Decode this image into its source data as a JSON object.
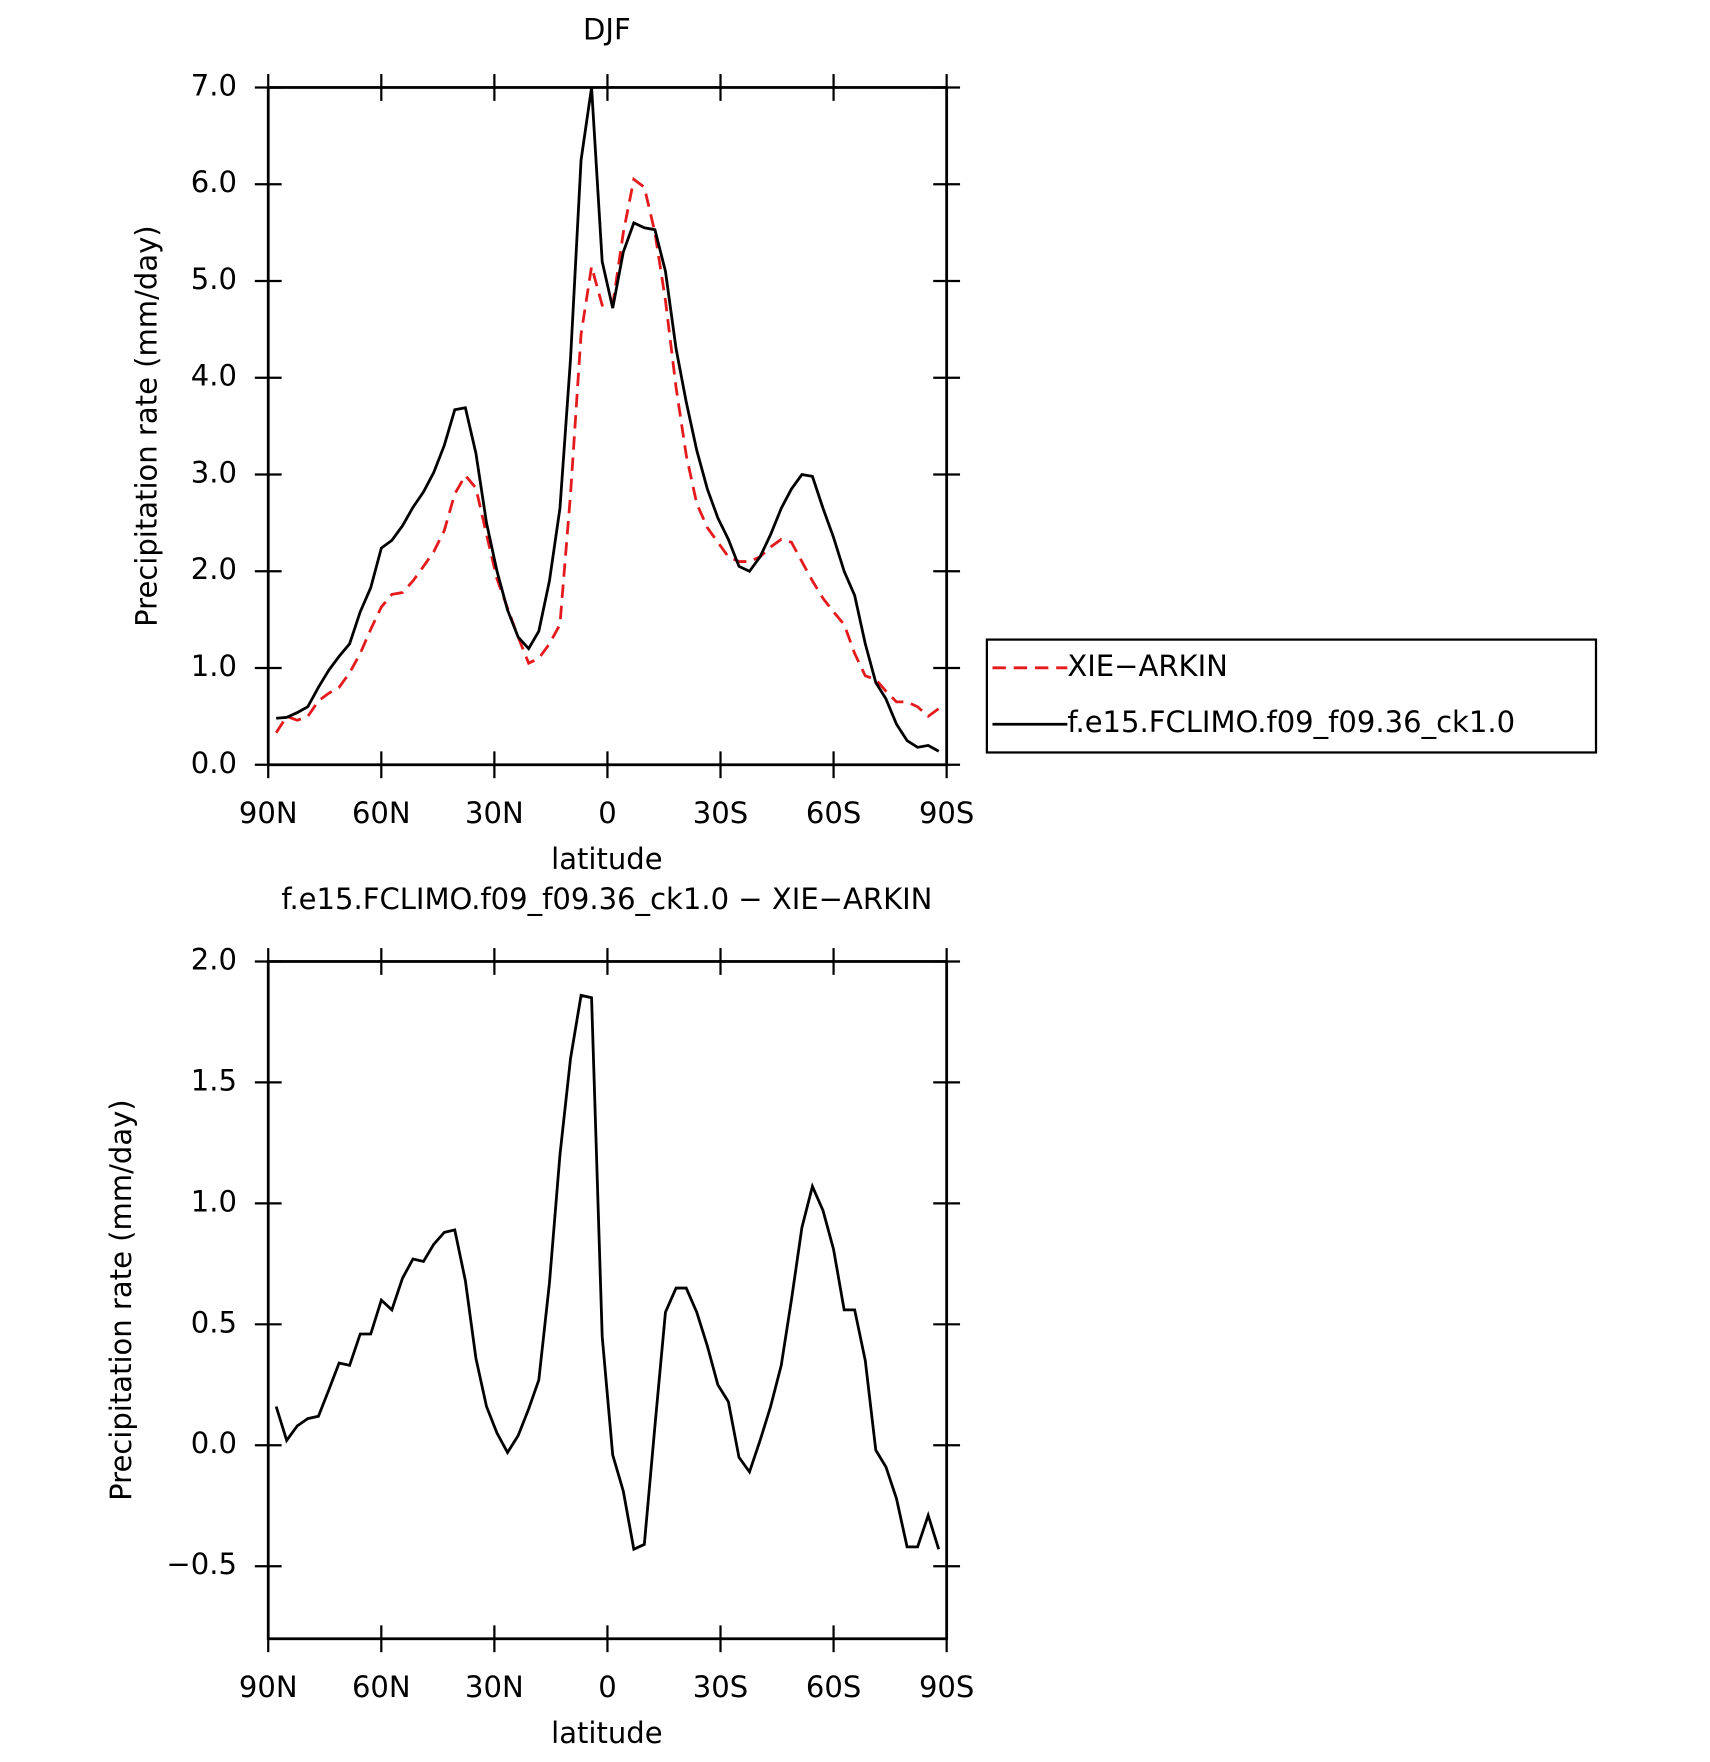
{
  "chart_data": [
    {
      "type": "line",
      "title": "DJF",
      "xlabel": "latitude",
      "ylabel": "Precipitation rate (mm/day)",
      "x": [
        87.9,
        85.1,
        82.3,
        79.5,
        76.7,
        73.9,
        71.2,
        68.4,
        65.6,
        62.8,
        60.0,
        57.2,
        54.4,
        51.6,
        48.8,
        46.1,
        43.3,
        40.5,
        37.7,
        34.9,
        32.1,
        29.3,
        26.5,
        23.7,
        20.9,
        18.2,
        15.4,
        12.6,
        9.8,
        7.0,
        4.2,
        1.4,
        -1.4,
        -4.2,
        -7.0,
        -9.8,
        -12.6,
        -15.4,
        -18.2,
        -20.9,
        -23.7,
        -26.5,
        -29.3,
        -32.1,
        -34.9,
        -37.7,
        -40.5,
        -43.3,
        -46.1,
        -48.8,
        -51.6,
        -54.4,
        -57.2,
        -60.0,
        -62.8,
        -65.6,
        -68.4,
        -71.2,
        -73.9,
        -76.7,
        -79.5,
        -82.3,
        -85.1,
        -87.9
      ],
      "series": [
        {
          "name": "XIE−ARKIN",
          "color": "#e41a1c",
          "linestyle": "dashed",
          "values": [
            0.33,
            0.5,
            0.46,
            0.5,
            0.66,
            0.74,
            0.8,
            0.95,
            1.15,
            1.4,
            1.63,
            1.76,
            1.78,
            1.9,
            2.05,
            2.2,
            2.42,
            2.8,
            2.99,
            2.86,
            2.38,
            1.92,
            1.62,
            1.32,
            1.05,
            1.1,
            1.25,
            1.45,
            2.8,
            4.45,
            5.15,
            4.75,
            4.75,
            5.5,
            6.05,
            5.97,
            5.5,
            4.8,
            3.9,
            3.2,
            2.7,
            2.45,
            2.3,
            2.15,
            2.1,
            2.1,
            2.15,
            2.25,
            2.33,
            2.3,
            2.1,
            1.9,
            1.72,
            1.58,
            1.45,
            1.15,
            0.92,
            0.88,
            0.76,
            0.65,
            0.65,
            0.6,
            0.5,
            0.58
          ]
        },
        {
          "name": "f.e15.FCLIMO.f09_f09.36_ck1.0",
          "color": "#000000",
          "linestyle": "solid",
          "values": [
            0.48,
            0.49,
            0.54,
            0.6,
            0.8,
            0.98,
            1.12,
            1.25,
            1.58,
            1.83,
            2.24,
            2.32,
            2.47,
            2.66,
            2.82,
            3.02,
            3.3,
            3.67,
            3.69,
            3.22,
            2.5,
            2.0,
            1.6,
            1.32,
            1.2,
            1.38,
            1.9,
            2.65,
            4.2,
            6.25,
            7.0,
            5.2,
            4.72,
            5.3,
            5.6,
            5.55,
            5.53,
            5.1,
            4.3,
            3.75,
            3.25,
            2.85,
            2.55,
            2.33,
            2.05,
            2.0,
            2.15,
            2.38,
            2.65,
            2.85,
            3.0,
            2.98,
            2.65,
            2.35,
            2.0,
            1.75,
            1.25,
            0.85,
            0.68,
            0.42,
            0.25,
            0.18,
            0.2,
            0.14
          ]
        }
      ],
      "xlim": [
        90,
        -90
      ],
      "xticks": [
        {
          "value": 90,
          "label": "90N"
        },
        {
          "value": 60,
          "label": "60N"
        },
        {
          "value": 30,
          "label": "30N"
        },
        0,
        {
          "value": -30,
          "label": "30S"
        },
        {
          "value": -60,
          "label": "60S"
        },
        {
          "value": -90,
          "label": "90S"
        }
      ],
      "ylim": [
        0,
        7
      ],
      "yticks": [
        {
          "value": 0,
          "label": "0.0"
        },
        {
          "value": 1,
          "label": "1.0"
        },
        {
          "value": 2,
          "label": "2.0"
        },
        {
          "value": 3,
          "label": "3.0"
        },
        {
          "value": 4,
          "label": "4.0"
        },
        {
          "value": 5,
          "label": "5.0"
        },
        {
          "value": 6,
          "label": "6.0"
        },
        {
          "value": 7,
          "label": "7.0"
        }
      ],
      "legend": "outside-right"
    },
    {
      "type": "line",
      "title": "f.e15.FCLIMO.f09_f09.36_ck1.0 − XIE−ARKIN",
      "xlabel": "latitude",
      "ylabel": "Precipitation rate (mm/day)",
      "x": [
        87.9,
        85.1,
        82.3,
        79.5,
        76.7,
        73.9,
        71.2,
        68.4,
        65.6,
        62.8,
        60.0,
        57.2,
        54.4,
        51.6,
        48.8,
        46.1,
        43.3,
        40.5,
        37.7,
        34.9,
        32.1,
        29.3,
        26.5,
        23.7,
        20.9,
        18.2,
        15.4,
        12.6,
        9.8,
        7.0,
        4.2,
        1.4,
        -1.4,
        -4.2,
        -7.0,
        -9.8,
        -12.6,
        -15.4,
        -18.2,
        -20.9,
        -23.7,
        -26.5,
        -29.3,
        -32.1,
        -34.9,
        -37.7,
        -40.5,
        -43.3,
        -46.1,
        -48.8,
        -51.6,
        -54.4,
        -57.2,
        -60.0,
        -62.8,
        -65.6,
        -68.4,
        -71.2,
        -73.9,
        -76.7,
        -79.5,
        -82.3,
        -85.1,
        -87.9
      ],
      "color": "#000000",
      "values": [
        0.16,
        0.02,
        0.08,
        0.11,
        0.12,
        0.23,
        0.34,
        0.33,
        0.46,
        0.46,
        0.6,
        0.56,
        0.69,
        0.77,
        0.76,
        0.83,
        0.88,
        0.89,
        0.68,
        0.36,
        0.16,
        0.05,
        -0.03,
        0.04,
        0.15,
        0.27,
        0.67,
        1.2,
        1.6,
        1.86,
        1.85,
        0.45,
        -0.04,
        -0.19,
        -0.43,
        -0.41,
        0.08,
        0.55,
        0.65,
        0.65,
        0.55,
        0.41,
        0.25,
        0.18,
        -0.05,
        -0.11,
        0.02,
        0.16,
        0.33,
        0.6,
        0.9,
        1.07,
        0.97,
        0.81,
        0.56,
        0.56,
        0.35,
        -0.02,
        -0.09,
        -0.22,
        -0.42,
        -0.42,
        -0.29,
        -0.43
      ],
      "xlim": [
        90,
        -90
      ],
      "xticks": [
        {
          "value": 90,
          "label": "90N"
        },
        {
          "value": 60,
          "label": "60N"
        },
        {
          "value": 30,
          "label": "30N"
        },
        0,
        {
          "value": -30,
          "label": "30S"
        },
        {
          "value": -60,
          "label": "60S"
        },
        {
          "value": -90,
          "label": "90S"
        }
      ],
      "ylim": [
        -0.8,
        2.0
      ],
      "yticks": [
        {
          "value": -0.5,
          "label": "−0.5"
        },
        {
          "value": 0,
          "label": "0.0"
        },
        {
          "value": 0.5,
          "label": "0.5"
        },
        {
          "value": 1,
          "label": "1.0"
        },
        {
          "value": 1.5,
          "label": "1.5"
        },
        {
          "value": 2,
          "label": "2.0"
        }
      ]
    }
  ]
}
